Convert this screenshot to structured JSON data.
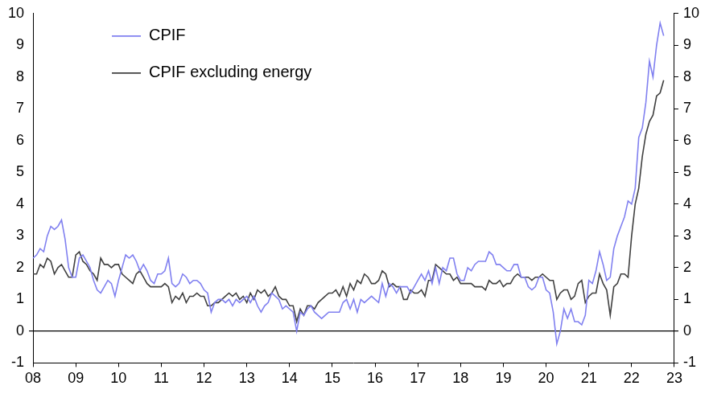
{
  "chart_data": {
    "type": "line",
    "categories": [
      "08",
      null,
      null,
      null,
      null,
      null,
      null,
      null,
      null,
      null,
      null,
      null,
      "09",
      null,
      null,
      null,
      null,
      null,
      null,
      null,
      null,
      null,
      null,
      null,
      "10",
      null,
      null,
      null,
      null,
      null,
      null,
      null,
      null,
      null,
      null,
      null,
      "11",
      null,
      null,
      null,
      null,
      null,
      null,
      null,
      null,
      null,
      null,
      null,
      "12",
      null,
      null,
      null,
      null,
      null,
      null,
      null,
      null,
      null,
      null,
      null,
      "13",
      null,
      null,
      null,
      null,
      null,
      null,
      null,
      null,
      null,
      null,
      null,
      "14",
      null,
      null,
      null,
      null,
      null,
      null,
      null,
      null,
      null,
      null,
      null,
      "15",
      null,
      null,
      null,
      null,
      null,
      null,
      null,
      null,
      null,
      null,
      null,
      "16",
      null,
      null,
      null,
      null,
      null,
      null,
      null,
      null,
      null,
      null,
      null,
      "17",
      null,
      null,
      null,
      null,
      null,
      null,
      null,
      null,
      null,
      null,
      null,
      "18",
      null,
      null,
      null,
      null,
      null,
      null,
      null,
      null,
      null,
      null,
      null,
      "19",
      null,
      null,
      null,
      null,
      null,
      null,
      null,
      null,
      null,
      null,
      null,
      "20",
      null,
      null,
      null,
      null,
      null,
      null,
      null,
      null,
      null,
      null,
      null,
      "21",
      null,
      null,
      null,
      null,
      null,
      null,
      null,
      null,
      null,
      null,
      null,
      "22",
      null,
      null,
      null,
      null,
      null,
      null,
      null,
      null,
      null,
      null,
      null,
      "23"
    ],
    "series": [
      {
        "name": "CPIF",
        "color": "#8080f0",
        "values": [
          2.3,
          2.4,
          2.6,
          2.5,
          3.0,
          3.3,
          3.2,
          3.3,
          3.5,
          2.9,
          2.0,
          1.7,
          1.7,
          2.3,
          2.4,
          2.2,
          2.0,
          1.6,
          1.3,
          1.2,
          1.4,
          1.6,
          1.5,
          1.1,
          1.6,
          2.0,
          2.4,
          2.3,
          2.4,
          2.2,
          1.9,
          2.1,
          1.9,
          1.6,
          1.5,
          1.8,
          1.8,
          1.9,
          2.3,
          1.5,
          1.4,
          1.5,
          1.8,
          1.7,
          1.5,
          1.6,
          1.6,
          1.5,
          1.3,
          1.2,
          0.6,
          0.9,
          1.0,
          1.0,
          0.9,
          1.0,
          0.8,
          1.0,
          0.9,
          1.0,
          1.1,
          0.9,
          1.1,
          0.8,
          0.6,
          0.8,
          0.9,
          1.2,
          1.1,
          1.0,
          0.7,
          0.8,
          0.7,
          0.6,
          0.0,
          0.6,
          0.5,
          0.7,
          0.8,
          0.6,
          0.5,
          0.4,
          0.5,
          0.6,
          0.6,
          0.6,
          0.6,
          0.9,
          1.0,
          0.7,
          1.0,
          0.6,
          1.0,
          0.9,
          1.0,
          1.1,
          1.0,
          0.9,
          1.5,
          1.1,
          1.5,
          1.4,
          1.2,
          1.4,
          1.4,
          1.4,
          1.2,
          1.4,
          1.6,
          1.8,
          1.6,
          1.9,
          1.5,
          2.0,
          1.5,
          2.0,
          1.9,
          2.3,
          2.3,
          1.8,
          1.6,
          1.6,
          2.0,
          1.9,
          2.1,
          2.2,
          2.2,
          2.2,
          2.5,
          2.4,
          2.1,
          2.1,
          2.0,
          1.9,
          1.9,
          2.1,
          2.1,
          1.7,
          1.7,
          1.4,
          1.3,
          1.4,
          1.7,
          1.7,
          1.3,
          1.2,
          0.6,
          -0.4,
          0.0,
          0.7,
          0.4,
          0.7,
          0.3,
          0.3,
          0.2,
          0.5,
          1.6,
          1.5,
          1.9,
          2.5,
          2.1,
          1.6,
          1.7,
          2.6,
          3.0,
          3.3,
          3.6,
          4.1,
          4.0,
          4.5,
          6.1,
          6.4,
          7.2,
          8.5,
          8.0,
          9.0,
          9.7,
          9.3,
          null,
          null,
          null
        ]
      },
      {
        "name": "CPIF excluding energy",
        "color": "#404040",
        "values": [
          1.8,
          1.8,
          2.1,
          2.0,
          2.3,
          2.2,
          1.8,
          2.0,
          2.1,
          1.9,
          1.7,
          1.7,
          2.4,
          2.5,
          2.2,
          2.1,
          1.9,
          1.8,
          1.6,
          2.3,
          2.1,
          2.1,
          2.0,
          2.1,
          2.1,
          1.8,
          1.7,
          1.6,
          1.5,
          1.8,
          1.9,
          1.7,
          1.5,
          1.4,
          1.4,
          1.4,
          1.4,
          1.5,
          1.4,
          0.9,
          1.1,
          1.0,
          1.2,
          0.9,
          1.1,
          1.1,
          1.2,
          1.1,
          1.1,
          0.8,
          0.8,
          0.9,
          0.9,
          1.0,
          1.1,
          1.2,
          1.1,
          1.2,
          1.0,
          1.1,
          0.9,
          1.2,
          1.0,
          1.3,
          1.2,
          1.3,
          1.1,
          1.2,
          1.4,
          1.1,
          1.0,
          1.0,
          0.8,
          0.8,
          0.3,
          0.7,
          0.5,
          0.8,
          0.8,
          0.7,
          0.9,
          1.0,
          1.1,
          1.2,
          1.2,
          1.3,
          1.1,
          1.4,
          1.1,
          1.5,
          1.3,
          1.6,
          1.5,
          1.8,
          1.7,
          1.5,
          1.5,
          1.6,
          1.9,
          1.8,
          1.4,
          1.5,
          1.4,
          1.4,
          1.0,
          1.0,
          1.3,
          1.2,
          1.2,
          1.3,
          1.1,
          1.6,
          1.6,
          2.1,
          2.0,
          1.9,
          1.8,
          1.8,
          1.6,
          1.7,
          1.5,
          1.5,
          1.5,
          1.5,
          1.4,
          1.4,
          1.4,
          1.3,
          1.6,
          1.5,
          1.5,
          1.6,
          1.4,
          1.5,
          1.5,
          1.7,
          1.8,
          1.7,
          1.7,
          1.7,
          1.6,
          1.7,
          1.7,
          1.8,
          1.7,
          1.6,
          1.6,
          1.0,
          1.2,
          1.3,
          1.3,
          1.0,
          1.1,
          1.5,
          1.6,
          0.9,
          1.1,
          1.2,
          1.2,
          1.8,
          1.5,
          1.3,
          0.5,
          1.4,
          1.5,
          1.8,
          1.8,
          1.7,
          3.0,
          4.0,
          4.5,
          5.5,
          6.2,
          6.6,
          6.8,
          7.4,
          7.5,
          7.9,
          null,
          null,
          null
        ]
      }
    ],
    "ylim": [
      -1,
      10
    ],
    "yticks": [
      -1,
      0,
      1,
      2,
      3,
      4,
      5,
      6,
      7,
      8,
      9,
      10
    ],
    "y2lim": [
      -1,
      10
    ],
    "y2ticks": [
      -1,
      0,
      1,
      2,
      3,
      4,
      5,
      6,
      7,
      8,
      9,
      10
    ],
    "grid": false,
    "legend": "upper left"
  }
}
